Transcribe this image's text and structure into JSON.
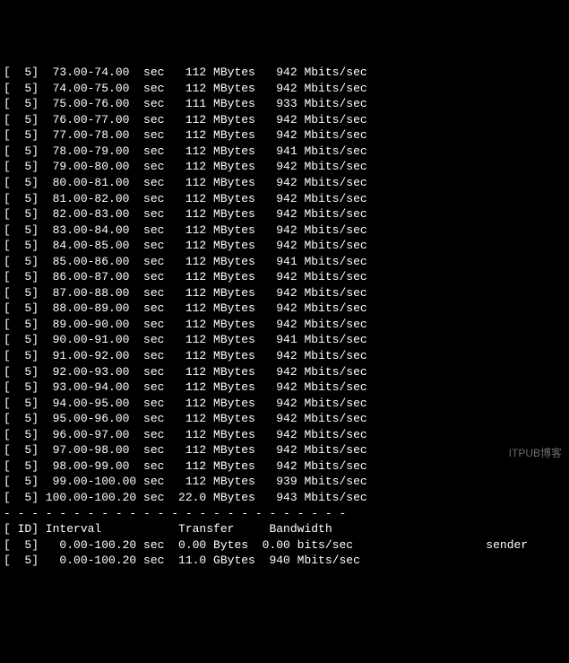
{
  "text_color": "#ffffff",
  "bg_color": "#000000",
  "font_family": "Courier New",
  "intervals": [
    {
      "id": "5",
      "range": " 73.00-74.00 ",
      "unit": "sec",
      "transfer": " 112",
      "tunit": "MBytes",
      "bw": " 942",
      "bwunit": "Mbits/sec"
    },
    {
      "id": "5",
      "range": " 74.00-75.00 ",
      "unit": "sec",
      "transfer": " 112",
      "tunit": "MBytes",
      "bw": " 942",
      "bwunit": "Mbits/sec"
    },
    {
      "id": "5",
      "range": " 75.00-76.00 ",
      "unit": "sec",
      "transfer": " 111",
      "tunit": "MBytes",
      "bw": " 933",
      "bwunit": "Mbits/sec"
    },
    {
      "id": "5",
      "range": " 76.00-77.00 ",
      "unit": "sec",
      "transfer": " 112",
      "tunit": "MBytes",
      "bw": " 942",
      "bwunit": "Mbits/sec"
    },
    {
      "id": "5",
      "range": " 77.00-78.00 ",
      "unit": "sec",
      "transfer": " 112",
      "tunit": "MBytes",
      "bw": " 942",
      "bwunit": "Mbits/sec"
    },
    {
      "id": "5",
      "range": " 78.00-79.00 ",
      "unit": "sec",
      "transfer": " 112",
      "tunit": "MBytes",
      "bw": " 941",
      "bwunit": "Mbits/sec"
    },
    {
      "id": "5",
      "range": " 79.00-80.00 ",
      "unit": "sec",
      "transfer": " 112",
      "tunit": "MBytes",
      "bw": " 942",
      "bwunit": "Mbits/sec"
    },
    {
      "id": "5",
      "range": " 80.00-81.00 ",
      "unit": "sec",
      "transfer": " 112",
      "tunit": "MBytes",
      "bw": " 942",
      "bwunit": "Mbits/sec"
    },
    {
      "id": "5",
      "range": " 81.00-82.00 ",
      "unit": "sec",
      "transfer": " 112",
      "tunit": "MBytes",
      "bw": " 942",
      "bwunit": "Mbits/sec"
    },
    {
      "id": "5",
      "range": " 82.00-83.00 ",
      "unit": "sec",
      "transfer": " 112",
      "tunit": "MBytes",
      "bw": " 942",
      "bwunit": "Mbits/sec"
    },
    {
      "id": "5",
      "range": " 83.00-84.00 ",
      "unit": "sec",
      "transfer": " 112",
      "tunit": "MBytes",
      "bw": " 942",
      "bwunit": "Mbits/sec"
    },
    {
      "id": "5",
      "range": " 84.00-85.00 ",
      "unit": "sec",
      "transfer": " 112",
      "tunit": "MBytes",
      "bw": " 942",
      "bwunit": "Mbits/sec"
    },
    {
      "id": "5",
      "range": " 85.00-86.00 ",
      "unit": "sec",
      "transfer": " 112",
      "tunit": "MBytes",
      "bw": " 941",
      "bwunit": "Mbits/sec"
    },
    {
      "id": "5",
      "range": " 86.00-87.00 ",
      "unit": "sec",
      "transfer": " 112",
      "tunit": "MBytes",
      "bw": " 942",
      "bwunit": "Mbits/sec"
    },
    {
      "id": "5",
      "range": " 87.00-88.00 ",
      "unit": "sec",
      "transfer": " 112",
      "tunit": "MBytes",
      "bw": " 942",
      "bwunit": "Mbits/sec"
    },
    {
      "id": "5",
      "range": " 88.00-89.00 ",
      "unit": "sec",
      "transfer": " 112",
      "tunit": "MBytes",
      "bw": " 942",
      "bwunit": "Mbits/sec"
    },
    {
      "id": "5",
      "range": " 89.00-90.00 ",
      "unit": "sec",
      "transfer": " 112",
      "tunit": "MBytes",
      "bw": " 942",
      "bwunit": "Mbits/sec"
    },
    {
      "id": "5",
      "range": " 90.00-91.00 ",
      "unit": "sec",
      "transfer": " 112",
      "tunit": "MBytes",
      "bw": " 941",
      "bwunit": "Mbits/sec"
    },
    {
      "id": "5",
      "range": " 91.00-92.00 ",
      "unit": "sec",
      "transfer": " 112",
      "tunit": "MBytes",
      "bw": " 942",
      "bwunit": "Mbits/sec"
    },
    {
      "id": "5",
      "range": " 92.00-93.00 ",
      "unit": "sec",
      "transfer": " 112",
      "tunit": "MBytes",
      "bw": " 942",
      "bwunit": "Mbits/sec"
    },
    {
      "id": "5",
      "range": " 93.00-94.00 ",
      "unit": "sec",
      "transfer": " 112",
      "tunit": "MBytes",
      "bw": " 942",
      "bwunit": "Mbits/sec"
    },
    {
      "id": "5",
      "range": " 94.00-95.00 ",
      "unit": "sec",
      "transfer": " 112",
      "tunit": "MBytes",
      "bw": " 942",
      "bwunit": "Mbits/sec"
    },
    {
      "id": "5",
      "range": " 95.00-96.00 ",
      "unit": "sec",
      "transfer": " 112",
      "tunit": "MBytes",
      "bw": " 942",
      "bwunit": "Mbits/sec"
    },
    {
      "id": "5",
      "range": " 96.00-97.00 ",
      "unit": "sec",
      "transfer": " 112",
      "tunit": "MBytes",
      "bw": " 942",
      "bwunit": "Mbits/sec"
    },
    {
      "id": "5",
      "range": " 97.00-98.00 ",
      "unit": "sec",
      "transfer": " 112",
      "tunit": "MBytes",
      "bw": " 942",
      "bwunit": "Mbits/sec"
    },
    {
      "id": "5",
      "range": " 98.00-99.00 ",
      "unit": "sec",
      "transfer": " 112",
      "tunit": "MBytes",
      "bw": " 942",
      "bwunit": "Mbits/sec"
    },
    {
      "id": "5",
      "range": " 99.00-100.00",
      "unit": "sec",
      "transfer": " 112",
      "tunit": "MBytes",
      "bw": " 939",
      "bwunit": "Mbits/sec"
    },
    {
      "id": "5",
      "range": "100.00-100.20",
      "unit": "sec",
      "transfer": "22.0",
      "tunit": "MBytes",
      "bw": " 943",
      "bwunit": "Mbits/sec"
    }
  ],
  "separator": "- - - - - - - - - - - - - - - - - - - - - - - - -",
  "header": {
    "id": "ID",
    "interval": "Interval",
    "transfer": "Transfer",
    "bandwidth": "Bandwidth"
  },
  "summary": [
    {
      "id": "5",
      "range": "  0.00-100.20",
      "unit": "sec",
      "transfer": "0.00",
      "tunit": "Bytes ",
      "bw": "0.00",
      "bwunit": "bits/sec ",
      "role": "sender"
    },
    {
      "id": "5",
      "range": "  0.00-100.20",
      "unit": "sec",
      "transfer": "11.0",
      "tunit": "GBytes",
      "bw": " 940",
      "bwunit": "Mbits/sec",
      "role": ""
    }
  ],
  "watermark": "ITPUB博客"
}
